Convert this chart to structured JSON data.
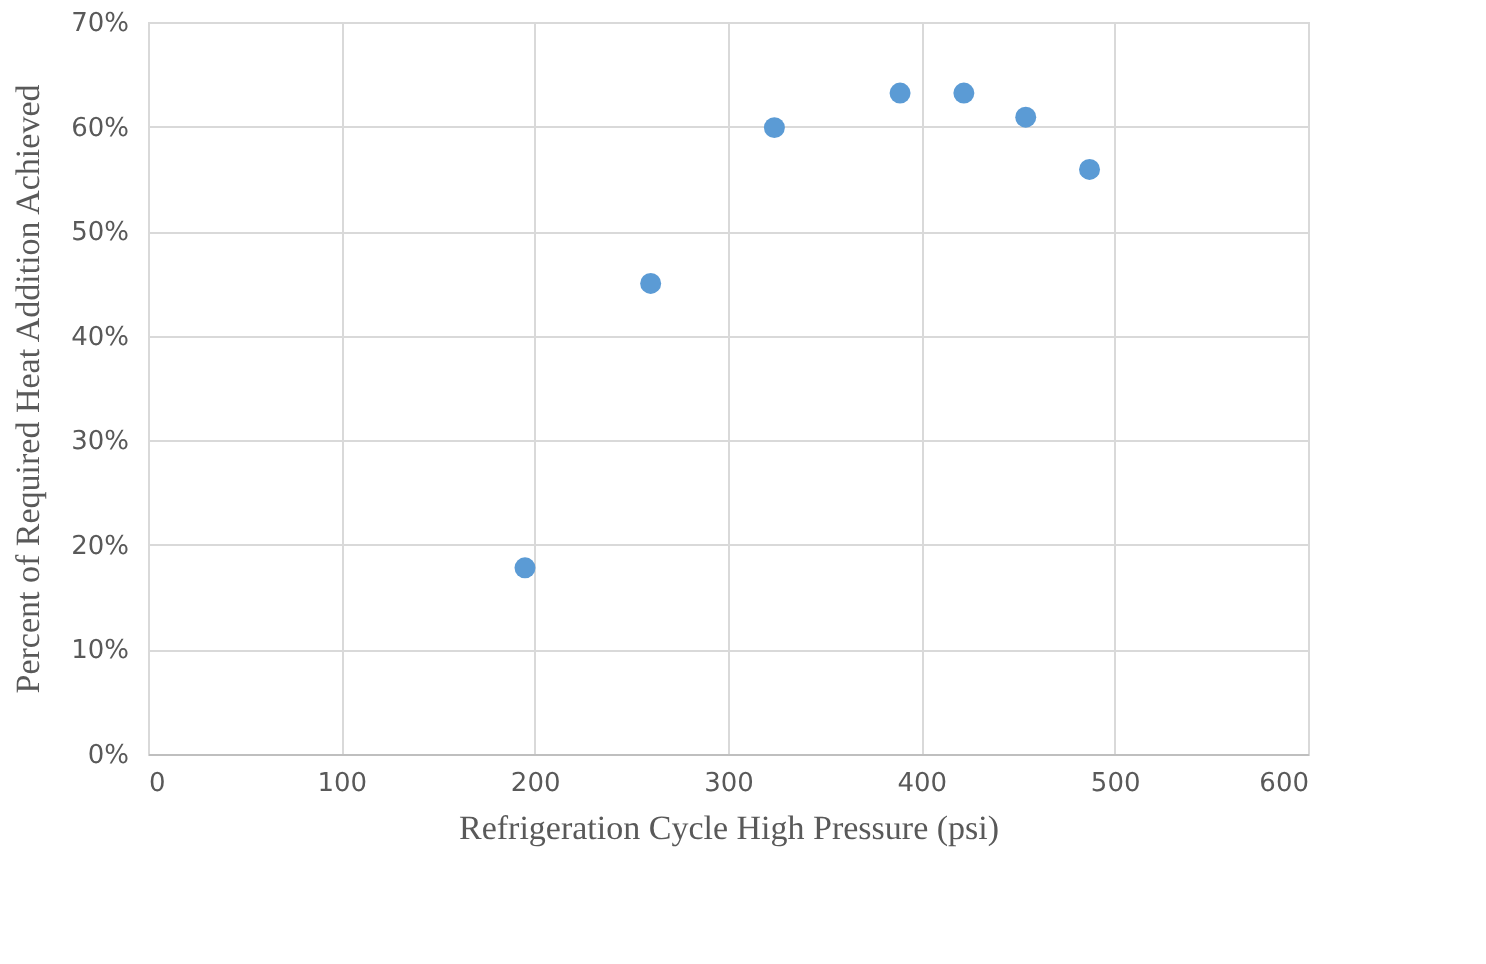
{
  "chart_data": {
    "type": "scatter",
    "xlabel": "Refrigeration Cycle High Pressure (psi)",
    "ylabel": "Percent of Required Heat Addition Achieved",
    "x": [
      195,
      260,
      324,
      389,
      422,
      454,
      487
    ],
    "series": [
      {
        "color": "#5b9bd5",
        "values": [
          0.178,
          0.45,
          0.599,
          0.632,
          0.632,
          0.609,
          0.559
        ]
      }
    ],
    "xlim": [
      0,
      600
    ],
    "xticks": [
      0,
      100,
      200,
      300,
      400,
      500,
      600
    ],
    "ylim": [
      0,
      0.7
    ],
    "yticks": [
      {
        "value": 0,
        "label": "0%"
      },
      {
        "value": 0.1,
        "label": "10%"
      },
      {
        "value": 0.2,
        "label": "20%"
      },
      {
        "value": 0.3,
        "label": "30%"
      },
      {
        "value": 0.4,
        "label": "40%"
      },
      {
        "value": 0.5,
        "label": "50%"
      },
      {
        "value": 0.6,
        "label": "60%"
      },
      {
        "value": 0.7,
        "label": "70%"
      }
    ],
    "grid": true,
    "marker": "circle"
  }
}
